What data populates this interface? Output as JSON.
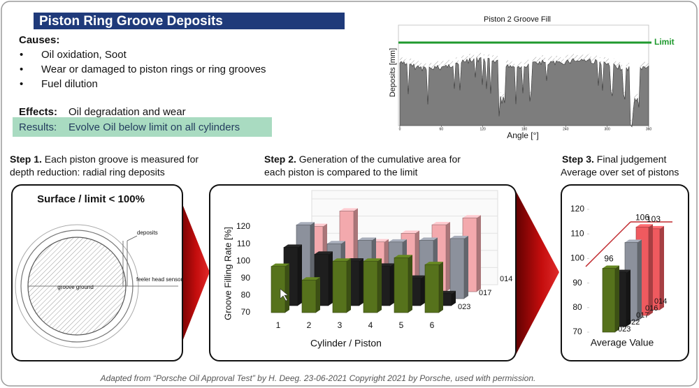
{
  "header": {
    "title": "Piston Ring Groove Deposits"
  },
  "causes": {
    "heading": "Causes:",
    "items": [
      "Oil oxidation,  Soot",
      "Wear or damaged  to piston rings or ring grooves",
      "Fuel dilution"
    ]
  },
  "effects": {
    "label": "Effects:",
    "text": "Oil degradation and wear"
  },
  "results": {
    "label": "Results:",
    "text": "Evolve Oil below limit on all cylinders"
  },
  "groove_fill_chart": {
    "title": "Piston 2 Groove Fill",
    "y_label": "Deposits [mm]",
    "x_label": "Angle [°]",
    "limit_label": "Limit",
    "xlim": [
      0,
      360
    ],
    "xticks": [
      0,
      60,
      120,
      180,
      240,
      300,
      360
    ]
  },
  "steps": [
    {
      "label": "Step 1.",
      "lines": [
        "Each piston groove is measured for",
        "depth reduction: radial ring deposits"
      ]
    },
    {
      "label": "Step 2.",
      "lines": [
        "Generation of the cumulative area for",
        "each piston is compared to the limit"
      ]
    },
    {
      "label": "Step 3.",
      "lines": [
        "Final judgement",
        "Average over set of pistons"
      ]
    }
  ],
  "step1_panel": {
    "title": "Surface / limit  < 100%",
    "labels": [
      "deposits",
      "feeler head sensor",
      "groove ground"
    ]
  },
  "step2_chart": {
    "type": "bar3d",
    "y_label": "Groove Filling Rate [%]",
    "x_label": "Cylinder / Piston",
    "ylim": [
      70,
      120
    ],
    "yticks": [
      70,
      80,
      90,
      100,
      110,
      120
    ],
    "categories": [
      "1",
      "2",
      "3",
      "4",
      "5",
      "6"
    ],
    "series": [
      {
        "color": "#56721c",
        "values": [
          97,
          89,
          100,
          100,
          102,
          98
        ]
      },
      {
        "name": "023",
        "color": "#1e1e1e",
        "values": [
          104,
          100,
          96,
          93,
          86,
          77
        ]
      },
      {
        "name": "017",
        "color": "#8c919c",
        "values": [
          113,
          102,
          104,
          103,
          104,
          105
        ]
      },
      {
        "name": "014",
        "color": "#f3a9ad",
        "values": [
          108,
          117,
          99,
          104,
          109,
          113
        ]
      }
    ]
  },
  "step3_chart": {
    "type": "bar3d",
    "x_label": "Average Value",
    "ylim": [
      70,
      120
    ],
    "yticks": [
      70,
      80,
      90,
      100,
      110,
      120
    ],
    "series": [
      {
        "name": "023",
        "color": "#56721c",
        "value": 96,
        "show_label": true
      },
      {
        "name": "022",
        "color": "#1e1e1e",
        "value": 92,
        "show_label": false
      },
      {
        "name": "017",
        "color": "#8c919c",
        "value": 102,
        "show_label": false
      },
      {
        "name": "016",
        "color": "#ef5a5f",
        "value": 106,
        "show_label": true
      },
      {
        "name": "014",
        "color": "#ef5a5f",
        "value": 103,
        "show_label": true
      }
    ]
  },
  "footer": "Adapted from “Porsche Oil Approval Test” by H. Deeg. 23-06-2021 Copyright 2021 by Porsche, used with permission."
}
